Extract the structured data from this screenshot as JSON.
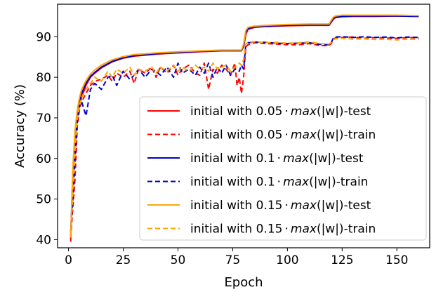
{
  "chart_data": {
    "type": "line",
    "title": "",
    "xlabel": "Epoch",
    "ylabel": "Accuracy (%)",
    "xlim": [
      -5,
      165
    ],
    "ylim": [
      38,
      98
    ],
    "xticks": [
      0,
      25,
      50,
      75,
      100,
      125,
      150
    ],
    "yticks": [
      40,
      50,
      60,
      70,
      80,
      90
    ],
    "grid": false,
    "legend_position": "lower-right",
    "series": [
      {
        "name": "initial with 0.05·max(|w|)-test",
        "legend": {
          "prefix": "initial with 0.05",
          "dot": "·",
          "func": "max",
          "arg": "(|w|)",
          "suffix": "-test"
        },
        "color": "#ff0000",
        "dash": "solid",
        "x": [
          1,
          2,
          3,
          4,
          5,
          6,
          8,
          10,
          12,
          15,
          20,
          25,
          30,
          40,
          50,
          60,
          70,
          79,
          80,
          81,
          82,
          85,
          90,
          100,
          110,
          119,
          120,
          121,
          122,
          125,
          130,
          140,
          150,
          160
        ],
        "y": [
          39.5,
          56,
          65,
          70,
          73,
          75,
          78,
          80,
          81,
          82.3,
          83.8,
          84.7,
          85.2,
          85.7,
          86,
          86.3,
          86.5,
          86.5,
          87.5,
          90.5,
          91.8,
          92.3,
          92.5,
          92.7,
          92.8,
          92.8,
          93.5,
          94.3,
          94.7,
          94.9,
          95,
          95,
          95.1,
          95
        ]
      },
      {
        "name": "initial with 0.05·max(|w|)-train",
        "legend": {
          "prefix": "initial with 0.05",
          "dot": "·",
          "func": "max",
          "arg": "(|w|)",
          "suffix": "-train"
        },
        "color": "#ff0000",
        "dash": "dashed",
        "x": [
          1,
          2,
          3,
          4,
          5,
          6,
          8,
          10,
          12,
          15,
          18,
          20,
          22,
          25,
          28,
          30,
          32,
          35,
          38,
          40,
          42,
          45,
          48,
          50,
          52,
          55,
          58,
          60,
          62,
          64,
          66,
          68,
          70,
          72,
          74,
          76,
          77,
          78,
          79,
          80,
          81,
          82,
          85,
          90,
          95,
          100,
          105,
          110,
          115,
          119,
          120,
          121,
          122,
          125,
          130,
          135,
          140,
          145,
          150,
          155,
          160
        ],
        "y": [
          40.5,
          48,
          55,
          68,
          72,
          74,
          76,
          78,
          79,
          79.5,
          80.5,
          79,
          81,
          80,
          81.5,
          78.5,
          82,
          81,
          82.5,
          80,
          82.5,
          81,
          83,
          80.5,
          82,
          83,
          81,
          80.5,
          83.5,
          77,
          82,
          81,
          83,
          82,
          80.5,
          83.5,
          78,
          80,
          76,
          80,
          87.5,
          88,
          88.5,
          88.3,
          88.2,
          88,
          88,
          88.3,
          87.8,
          87.8,
          88.3,
          89.5,
          89.7,
          89.8,
          89.9,
          89.6,
          89.8,
          89.7,
          89.6,
          89.8,
          89.7
        ]
      },
      {
        "name": "initial with 0.1·max(|w|)-test",
        "legend": {
          "prefix": "initial with 0.1",
          "dot": "·",
          "func": "max",
          "arg": "(|w|)",
          "suffix": "-test"
        },
        "color": "#0000cc",
        "dash": "solid",
        "x": [
          1,
          2,
          3,
          4,
          5,
          6,
          8,
          10,
          12,
          15,
          20,
          25,
          30,
          40,
          50,
          60,
          70,
          79,
          80,
          81,
          82,
          85,
          90,
          100,
          110,
          119,
          120,
          121,
          122,
          125,
          130,
          140,
          150,
          160
        ],
        "y": [
          41,
          57,
          66,
          71,
          74,
          76,
          78.5,
          80.2,
          81.2,
          82.5,
          83.9,
          84.8,
          85.3,
          85.8,
          86.1,
          86.4,
          86.6,
          86.6,
          87.8,
          91,
          92,
          92.4,
          92.6,
          92.8,
          92.9,
          92.9,
          93.7,
          94.5,
          94.8,
          95,
          95.1,
          95.1,
          95.1,
          95
        ]
      },
      {
        "name": "initial with 0.1·max(|w|)-train",
        "legend": {
          "prefix": "initial with 0.1",
          "dot": "·",
          "func": "max",
          "arg": "(|w|)",
          "suffix": "-train"
        },
        "color": "#0000cc",
        "dash": "dashed",
        "x": [
          1,
          2,
          3,
          4,
          5,
          6,
          8,
          10,
          12,
          15,
          18,
          20,
          22,
          25,
          28,
          30,
          32,
          35,
          38,
          40,
          42,
          45,
          48,
          50,
          52,
          55,
          58,
          60,
          62,
          64,
          66,
          68,
          70,
          72,
          74,
          76,
          78,
          79,
          80,
          81,
          82,
          85,
          90,
          95,
          100,
          105,
          110,
          115,
          119,
          120,
          121,
          122,
          125,
          130,
          135,
          140,
          145,
          150,
          155,
          160
        ],
        "y": [
          42,
          50,
          60,
          69,
          73,
          74,
          70.5,
          77,
          78.5,
          77,
          80,
          80.5,
          78,
          81.5,
          79.5,
          80.5,
          82,
          80,
          82,
          81.5,
          80.5,
          82.5,
          80,
          83.5,
          81,
          82,
          80.5,
          82.5,
          81,
          83.5,
          80,
          82.5,
          81,
          83,
          80.5,
          82,
          81.5,
          83,
          82,
          88,
          88.5,
          88.7,
          88.6,
          88.4,
          88.3,
          88.4,
          88.5,
          88.1,
          88,
          88.5,
          89.7,
          89.9,
          90,
          89.8,
          90,
          89.8,
          89.9,
          89.7,
          89.9,
          89.8
        ]
      },
      {
        "name": "initial with 0.15·max(|w|)-test",
        "legend": {
          "prefix": "initial with 0.15",
          "dot": "·",
          "func": "max",
          "arg": "(|w|)",
          "suffix": "-test"
        },
        "color": "#ffa500",
        "dash": "solid",
        "x": [
          1,
          2,
          3,
          4,
          5,
          6,
          8,
          10,
          12,
          15,
          20,
          25,
          30,
          40,
          50,
          60,
          70,
          79,
          80,
          81,
          82,
          85,
          90,
          100,
          110,
          119,
          120,
          121,
          122,
          125,
          130,
          140,
          150,
          160
        ],
        "y": [
          40.5,
          58,
          67,
          72,
          75,
          77,
          79.2,
          80.8,
          81.8,
          83,
          84.3,
          85.1,
          85.6,
          86,
          86.3,
          86.5,
          86.7,
          86.7,
          88.2,
          91.5,
          92.3,
          92.6,
          92.8,
          93,
          93.1,
          93.1,
          94,
          94.8,
          95.1,
          95.3,
          95.3,
          95.3,
          95.3,
          95.2
        ]
      },
      {
        "name": "initial with 0.15·max(|w|)-train",
        "legend": {
          "prefix": "initial with 0.15",
          "dot": "·",
          "func": "max",
          "arg": "(|w|)",
          "suffix": "-train"
        },
        "color": "#ffa500",
        "dash": "dashed",
        "x": [
          1,
          2,
          3,
          4,
          5,
          6,
          8,
          10,
          12,
          15,
          18,
          20,
          22,
          25,
          28,
          30,
          32,
          35,
          38,
          40,
          42,
          45,
          48,
          50,
          52,
          55,
          58,
          60,
          62,
          64,
          66,
          68,
          70,
          72,
          74,
          76,
          78,
          79,
          80,
          81,
          82,
          85,
          90,
          95,
          100,
          105,
          110,
          115,
          119,
          120,
          121,
          122,
          125,
          130,
          135,
          140,
          145,
          150,
          155,
          160
        ],
        "y": [
          41,
          52,
          62,
          70,
          73,
          75,
          77,
          78.5,
          80,
          79,
          81.5,
          80,
          82,
          81,
          82.5,
          80.5,
          82,
          81.5,
          82.5,
          81,
          82.5,
          81.5,
          83,
          81.5,
          82.5,
          81.5,
          83,
          82,
          82.5,
          81.5,
          83.5,
          82,
          82.5,
          83,
          81.5,
          82.5,
          83.5,
          83,
          84.5,
          88.2,
          88.6,
          88.8,
          88.5,
          88.6,
          88.4,
          88.5,
          88.7,
          88.3,
          88.2,
          88.6,
          89.3,
          89.5,
          89.6,
          89.4,
          89.5,
          89.3,
          89.4,
          89.2,
          89.4,
          89.3
        ]
      }
    ]
  }
}
